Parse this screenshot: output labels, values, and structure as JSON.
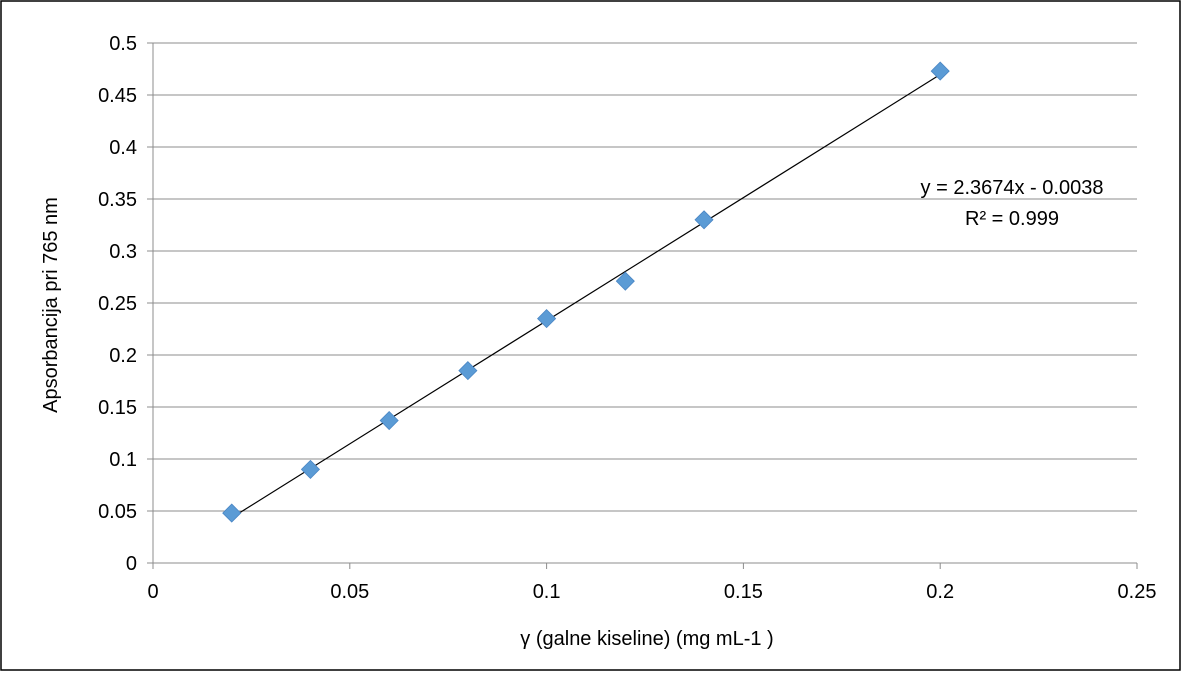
{
  "chart_data": {
    "type": "scatter",
    "xlabel": "γ (galne kiseline) (mg mL-1 )",
    "ylabel": "Apsorbancija pri 765 nm",
    "xlim": [
      0,
      0.25
    ],
    "ylim": [
      0,
      0.5
    ],
    "x_ticks": [
      "0",
      "0.05",
      "0.1",
      "0.15",
      "0.2",
      "0.25"
    ],
    "y_ticks": [
      "0",
      "0.05",
      "0.1",
      "0.15",
      "0.2",
      "0.25",
      "0.3",
      "0.35",
      "0.4",
      "0.45",
      "0.5"
    ],
    "x_tick_values": [
      0,
      0.05,
      0.1,
      0.15,
      0.2,
      0.25
    ],
    "y_tick_values": [
      0,
      0.05,
      0.1,
      0.15,
      0.2,
      0.25,
      0.3,
      0.35,
      0.4,
      0.45,
      0.5
    ],
    "grid": "horizontal",
    "series": [
      {
        "x": [
          0.02,
          0.04,
          0.06,
          0.08,
          0.1,
          0.12,
          0.14,
          0.2
        ],
        "y": [
          0.048,
          0.09,
          0.137,
          0.185,
          0.235,
          0.271,
          0.33,
          0.473
        ],
        "marker": "diamond",
        "color": "#5b9bd5"
      }
    ],
    "trendline": {
      "slope": 2.3674,
      "intercept": -0.0038,
      "x_range": [
        0.02,
        0.2
      ],
      "color": "#000000",
      "equation": "y = 2.3674x - 0.0038",
      "r_squared": "R² = 0.999"
    }
  }
}
